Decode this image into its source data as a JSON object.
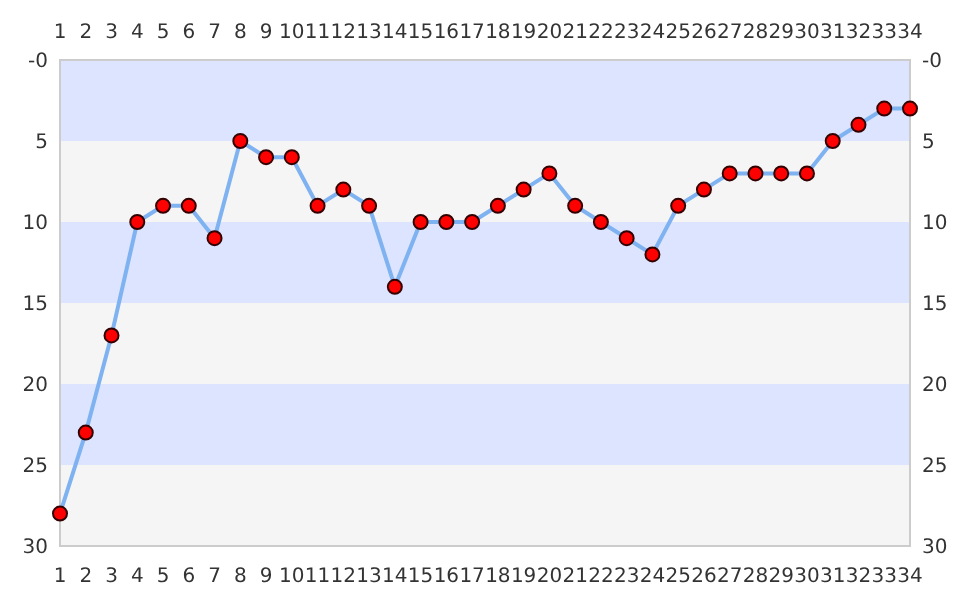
{
  "chart_data": {
    "type": "line",
    "x": [
      1,
      2,
      3,
      4,
      5,
      6,
      7,
      8,
      9,
      10,
      11,
      12,
      13,
      14,
      15,
      16,
      17,
      18,
      19,
      20,
      21,
      22,
      23,
      24,
      25,
      26,
      27,
      28,
      29,
      30,
      31,
      32,
      33,
      34
    ],
    "series": [
      {
        "color": "#7fb2f0",
        "values": [
          28,
          23,
          17,
          10,
          9,
          9,
          11,
          5,
          6,
          6,
          9,
          8,
          9,
          14,
          10,
          10,
          10,
          9,
          8,
          7,
          9,
          10,
          11,
          12,
          9,
          8,
          7,
          7,
          7,
          7,
          5,
          4,
          3,
          3
        ]
      }
    ],
    "marker": "circle",
    "line_style": "solid",
    "xlim": [
      1,
      34
    ],
    "xticks": [
      1,
      2,
      3,
      4,
      5,
      6,
      7,
      8,
      9,
      10,
      11,
      12,
      13,
      14,
      15,
      16,
      17,
      18,
      19,
      20,
      21,
      22,
      23,
      24,
      25,
      26,
      27,
      28,
      29,
      30,
      31,
      32,
      33,
      34
    ],
    "x2lim": [
      1,
      34
    ],
    "x2ticks": [
      1,
      2,
      3,
      4,
      5,
      6,
      7,
      8,
      9,
      10,
      11,
      12,
      13,
      14,
      15,
      16,
      17,
      18,
      19,
      20,
      21,
      22,
      23,
      24,
      25,
      26,
      27,
      28,
      29,
      30,
      31,
      32,
      33,
      34
    ],
    "ylim": [
      30,
      0
    ],
    "yticks": [
      {
        "value": 0,
        "label": "-0"
      },
      5,
      10,
      15,
      20,
      25,
      30
    ],
    "y2lim": [
      30,
      0
    ],
    "y2ticks": [
      {
        "value": 0,
        "label": "-0"
      },
      5,
      10,
      15,
      20,
      25,
      30
    ],
    "bands": [
      {
        "axis": "y",
        "from": 0,
        "to": 5,
        "color": "#dde4ff"
      },
      {
        "axis": "y",
        "from": 5,
        "to": 10,
        "color": "#f5f5f5"
      },
      {
        "axis": "y",
        "from": 10,
        "to": 15,
        "color": "#dde4ff"
      },
      {
        "axis": "y",
        "from": 15,
        "to": 20,
        "color": "#f5f5f5"
      },
      {
        "axis": "y",
        "from": 20,
        "to": 25,
        "color": "#dde4ff"
      },
      {
        "axis": "y",
        "from": 25,
        "to": 30,
        "color": "#f5f5f5"
      }
    ]
  }
}
